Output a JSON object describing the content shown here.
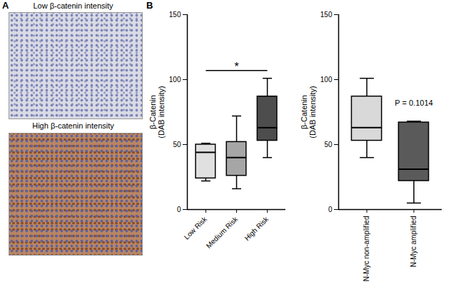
{
  "figure": {
    "panels": [
      "A",
      "B"
    ],
    "images": [
      {
        "label": "Low β-catenin intensity"
      },
      {
        "label": "High β-catenin intensity"
      }
    ]
  },
  "chart_data": [
    {
      "type": "box",
      "categories": [
        "Low Risk",
        "Medium Risk",
        "High Risk"
      ],
      "colors": [
        "#e0e0e0",
        "#a6a6a6",
        "#4d4d4d"
      ],
      "y_label": "β-Catenin\n(DAB intensity)",
      "ylim": [
        0,
        150
      ],
      "yticks": [
        0,
        50,
        100,
        150
      ],
      "min": [
        22,
        16,
        40
      ],
      "q1": [
        24,
        26,
        53
      ],
      "median": [
        44,
        40,
        63
      ],
      "q3": [
        50,
        52,
        87
      ],
      "max": [
        51,
        72,
        101
      ],
      "annotations": [
        {
          "text": "*",
          "from": "Low Risk",
          "to": "High Risk",
          "y": 107
        }
      ]
    },
    {
      "type": "box",
      "categories": [
        "N-Myc non-amplified",
        "N-Myc amplified"
      ],
      "colors": [
        "#d9d9d9",
        "#5a5a5a"
      ],
      "y_label": "β-Catenin\n(DAB intensity)",
      "ylim": [
        0,
        150
      ],
      "yticks": [
        0,
        50,
        100,
        150
      ],
      "min": [
        40,
        5
      ],
      "q1": [
        53,
        22
      ],
      "median": [
        63,
        31
      ],
      "q3": [
        87,
        67
      ],
      "max": [
        101,
        68
      ],
      "annotations": [
        {
          "text": "P = 0.1014",
          "at": "N-Myc amplified",
          "y": 82
        }
      ]
    }
  ]
}
